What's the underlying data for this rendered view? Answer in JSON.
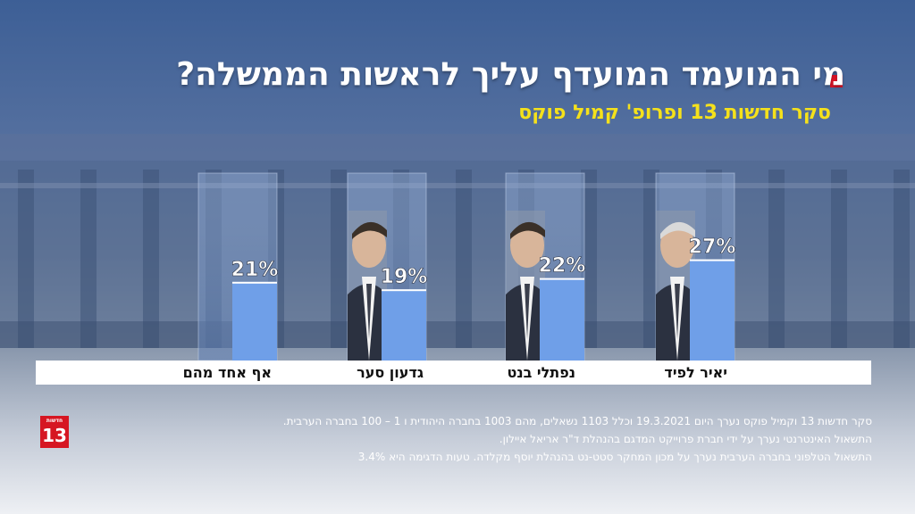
{
  "header": {
    "title": "מי המועמד המועדף עליך לראשות הממשלה?",
    "subtitle": "סקר חדשות 13 ופרופ' קמיל פוקס"
  },
  "chart_data": {
    "type": "bar",
    "title": "מי המועמד המועדף עליך לראשות הממשלה?",
    "subtitle": "סקר חדשות 13 ופרופ' קמיל פוקס",
    "categories": [
      "יאיר לפיד",
      "נפתלי בנט",
      "גדעון סער",
      "אף אחד מהם"
    ],
    "values": [
      27,
      22,
      19,
      21
    ],
    "value_labels": [
      "27%",
      "22%",
      "19%",
      "21%"
    ],
    "unit": "%",
    "ylim": [
      0,
      50
    ],
    "grid": false,
    "legend": "none"
  },
  "footer": {
    "line1": "סקר חדשות 13 וקמיל פוקס נערך היום 19.3.2021 וכלל 1103 נשאלים, מהם 1003 בחברה היהודית ו 1 – 100 בחברה הערבית.",
    "line2": "התשאול האינטרנטי נערך על ידי חברת פרוייקט המדגם בהנהלת ד\"ר אריאל איילון.",
    "line3": "התשאול הטלפוני בחברה הערבית נערך על מכון המחקר סטט-נט בהנהלת יוסף מקלדה. טעות הדגימה היא 3.4%"
  },
  "logo": {
    "small": "חדשות",
    "big": "13"
  },
  "colors": {
    "bar": "#6f9fe8",
    "column_glass": "#9cb7e0",
    "title": "#ffffff",
    "subtitle": "#f5e11b",
    "accent_red": "#e01428"
  }
}
